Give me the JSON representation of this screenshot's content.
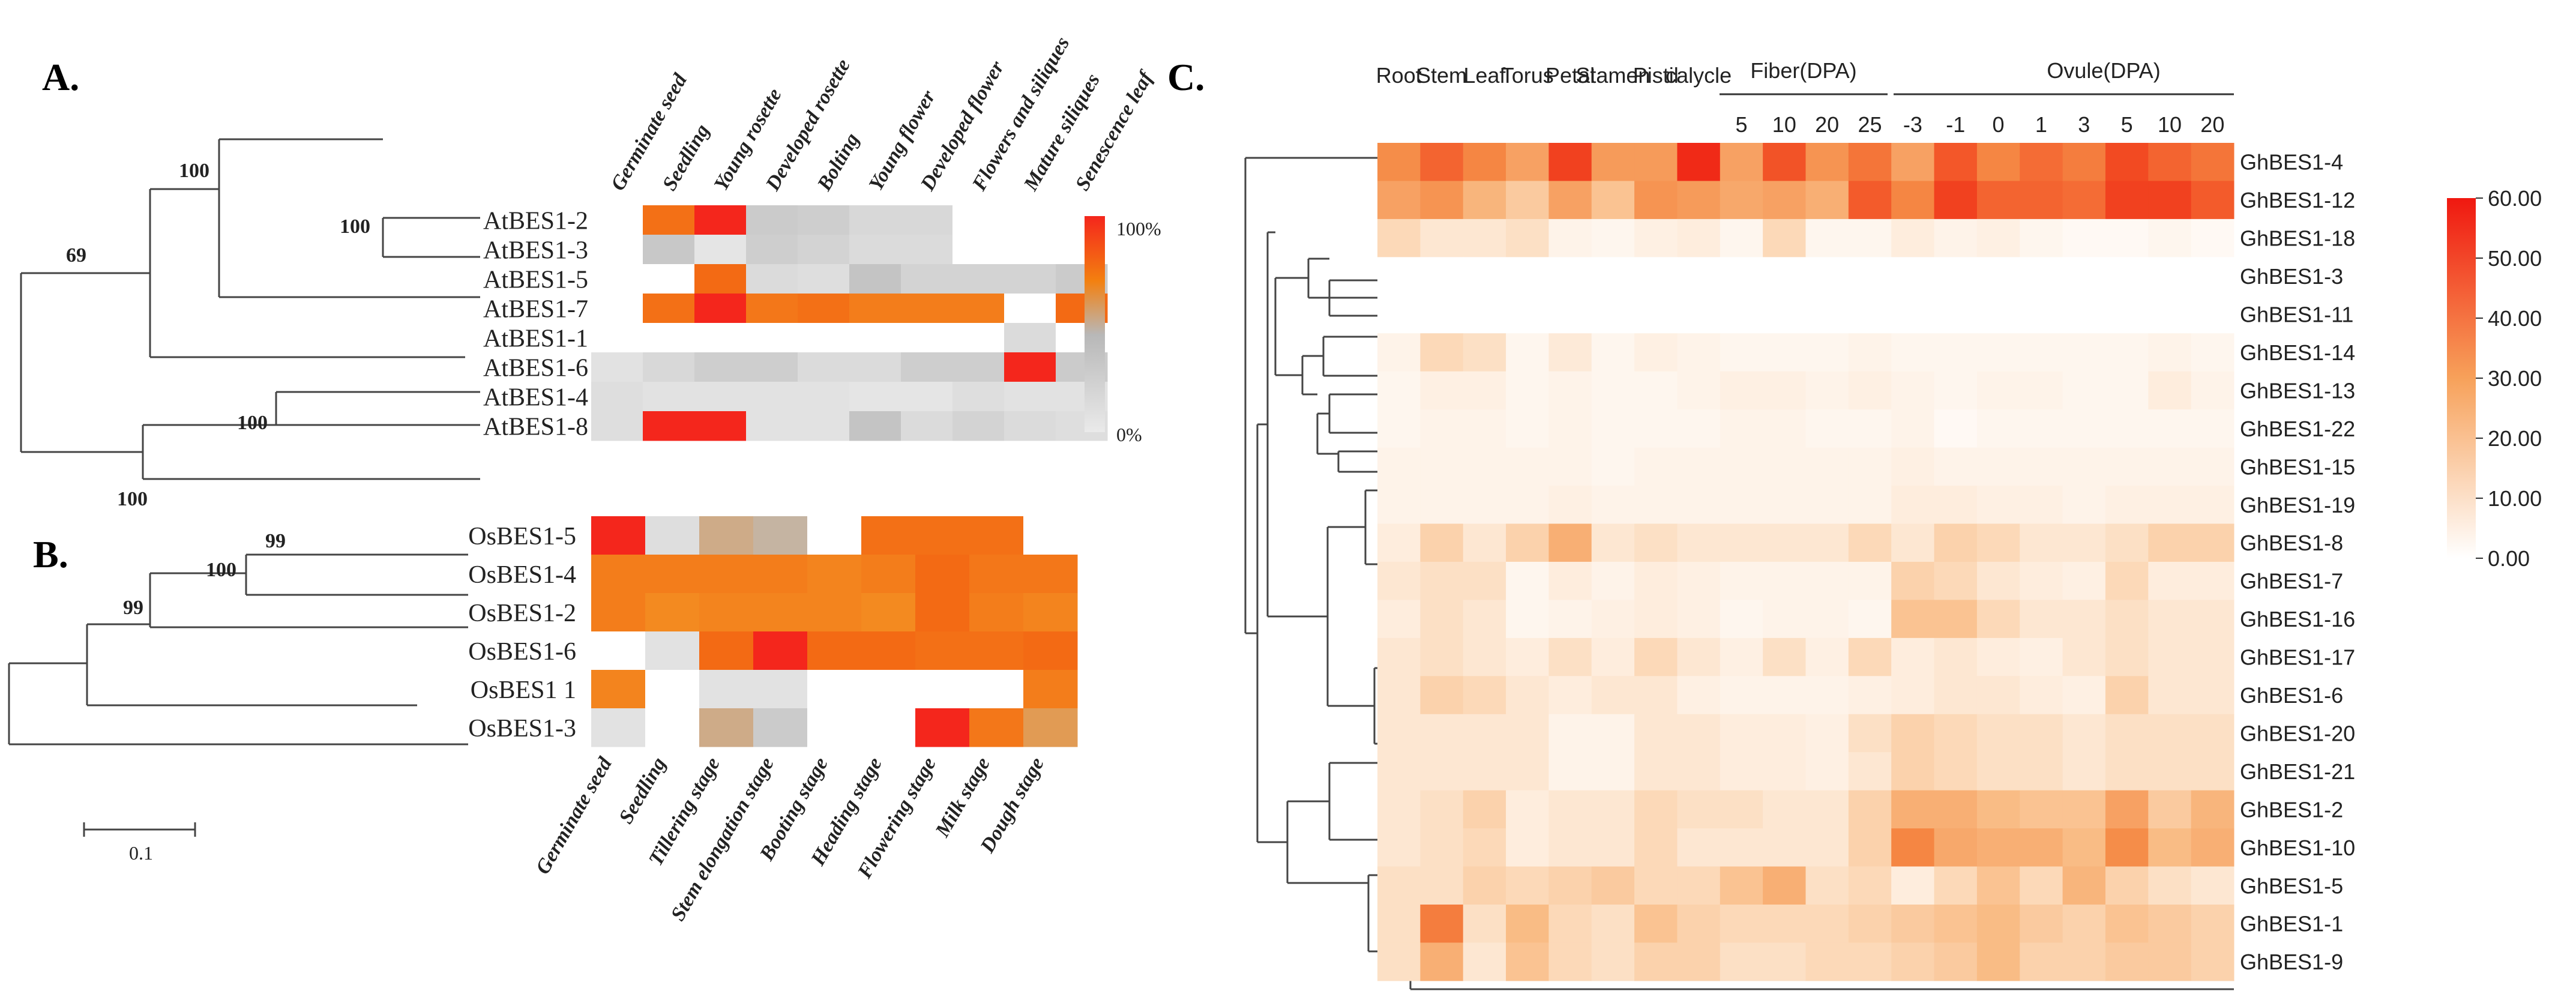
{
  "panels": {
    "a": "A.",
    "b": "B.",
    "c": "C."
  },
  "scale_bar": {
    "label": "0.1"
  },
  "colors": {
    "red": "#f4261c",
    "orange": "#f38010",
    "gray": "#c4c4c4",
    "light": "#e9e9e9",
    "white": "#ffffff"
  },
  "chart_data": [
    {
      "type": "heatmap",
      "panel": "A",
      "columns": [
        "Germinate seed",
        "Seedling",
        "Young rosette",
        "Developed rosette",
        "Bolting",
        "Young flower",
        "Developed flower",
        "Flowers and siliques",
        "Mature siliques",
        "Senescence leaf"
      ],
      "rows": [
        "AtBES1-2",
        "AtBES1-3",
        "AtBES1-5",
        "AtBES1-7",
        "AtBES1-1",
        "AtBES1-6",
        "AtBES1-4",
        "AtBES1-8"
      ],
      "values": [
        [
          0,
          80,
          100,
          20,
          18,
          12,
          12,
          0,
          0,
          0
        ],
        [
          0,
          22,
          3,
          18,
          15,
          10,
          10,
          0,
          0,
          0
        ],
        [
          0,
          0,
          85,
          10,
          8,
          25,
          15,
          15,
          15,
          20
        ],
        [
          0,
          80,
          100,
          75,
          80,
          70,
          70,
          70,
          0,
          85
        ],
        [
          0,
          0,
          0,
          0,
          0,
          0,
          0,
          0,
          10,
          0
        ],
        [
          5,
          12,
          18,
          18,
          10,
          10,
          18,
          18,
          100,
          20
        ],
        [
          8,
          5,
          5,
          5,
          5,
          3,
          3,
          8,
          5,
          5
        ],
        [
          8,
          100,
          100,
          5,
          5,
          25,
          10,
          15,
          10,
          8
        ]
      ],
      "legend": {
        "max_label": "100%",
        "min_label": "0%"
      },
      "bootstrap": [
        "100",
        "100",
        "69",
        "100",
        "100"
      ]
    },
    {
      "type": "heatmap",
      "panel": "B",
      "columns": [
        "Germinate seed",
        "Seedling",
        "Tillering stage",
        "Stem elongation stage",
        "Booting stage",
        "Heading stage",
        "Flowering stage",
        "Milk stage",
        "Dough stage"
      ],
      "rows": [
        "OsBES1-5",
        "OsBES1-4",
        "OsBES1-2",
        "OsBES1-6",
        "OsBES1 1",
        "OsBES1-3"
      ],
      "values": [
        [
          100,
          8,
          40,
          35,
          0,
          80,
          80,
          80,
          0
        ],
        [
          70,
          70,
          70,
          70,
          65,
          70,
          85,
          75,
          75
        ],
        [
          70,
          60,
          65,
          65,
          65,
          60,
          85,
          70,
          65
        ],
        [
          0,
          5,
          85,
          100,
          85,
          85,
          80,
          80,
          85
        ],
        [
          65,
          0,
          5,
          5,
          0,
          0,
          0,
          0,
          70
        ],
        [
          5,
          0,
          40,
          20,
          0,
          0,
          100,
          75,
          50
        ]
      ],
      "bootstrap": [
        "99",
        "100",
        "99"
      ]
    },
    {
      "type": "heatmap",
      "panel": "C",
      "column_groups": [
        {
          "label": "Fiber(DPA)"
        },
        {
          "label": "Ovule(DPA)"
        }
      ],
      "columns": [
        "Root",
        "Stem",
        "Leaf",
        "Torus",
        "Petal",
        "Stamen",
        "Pistil",
        "calycle",
        "5",
        "10",
        "20",
        "25",
        "-3",
        "-1",
        "0",
        "1",
        "3",
        "5",
        "10",
        "20"
      ],
      "rows": [
        "GhBES1-4",
        "GhBES1-12",
        "GhBES1-18",
        "GhBES1-3",
        "GhBES1-11",
        "GhBES1-14",
        "GhBES1-13",
        "GhBES1-22",
        "GhBES1-15",
        "GhBES1-19",
        "GhBES1-8",
        "GhBES1-7",
        "GhBES1-16",
        "GhBES1-17",
        "GhBES1-6",
        "GhBES1-20",
        "GhBES1-21",
        "GhBES1-2",
        "GhBES1-10",
        "GhBES1-5",
        "GhBES1-1",
        "GhBES1-9"
      ],
      "values": [
        [
          34,
          44,
          36,
          28,
          52,
          30,
          30,
          57,
          28,
          48,
          32,
          40,
          28,
          47,
          36,
          42,
          38,
          50,
          44,
          40
        ],
        [
          28,
          32,
          22,
          16,
          28,
          18,
          32,
          30,
          26,
          28,
          24,
          46,
          36,
          52,
          44,
          44,
          42,
          52,
          52,
          46
        ],
        [
          12,
          8,
          8,
          10,
          4,
          3,
          5,
          6,
          3,
          12,
          3,
          3,
          6,
          4,
          5,
          3,
          2,
          2,
          3,
          2
        ],
        [
          0,
          0,
          0,
          0,
          0,
          0,
          0,
          0,
          0,
          0,
          0,
          0,
          0,
          0,
          0,
          0,
          0,
          0,
          0,
          0
        ],
        [
          0,
          0,
          0,
          0,
          0,
          0,
          0,
          0,
          0,
          0,
          0,
          0,
          0,
          0,
          0,
          0,
          0,
          0,
          0,
          0
        ],
        [
          4,
          12,
          10,
          3,
          7,
          3,
          5,
          4,
          3,
          3,
          3,
          4,
          3,
          3,
          3,
          3,
          3,
          3,
          4,
          3
        ],
        [
          3,
          5,
          5,
          3,
          4,
          3,
          3,
          4,
          5,
          5,
          4,
          5,
          4,
          3,
          4,
          4,
          3,
          3,
          6,
          4
        ],
        [
          3,
          4,
          4,
          3,
          4,
          3,
          3,
          3,
          4,
          4,
          3,
          3,
          4,
          2,
          3,
          3,
          3,
          3,
          3,
          3
        ],
        [
          4,
          4,
          4,
          4,
          4,
          3,
          4,
          4,
          4,
          4,
          4,
          4,
          5,
          4,
          4,
          4,
          4,
          4,
          4,
          4
        ],
        [
          4,
          4,
          4,
          4,
          5,
          4,
          4,
          4,
          4,
          4,
          4,
          4,
          6,
          6,
          5,
          5,
          4,
          5,
          5,
          5
        ],
        [
          6,
          14,
          8,
          14,
          24,
          8,
          10,
          8,
          8,
          8,
          8,
          12,
          8,
          14,
          12,
          8,
          8,
          10,
          14,
          14
        ],
        [
          8,
          10,
          10,
          3,
          6,
          4,
          6,
          5,
          4,
          4,
          4,
          4,
          14,
          12,
          8,
          6,
          5,
          12,
          6,
          6
        ],
        [
          6,
          10,
          8,
          3,
          4,
          5,
          6,
          5,
          3,
          4,
          4,
          3,
          18,
          18,
          12,
          8,
          8,
          10,
          8,
          8
        ],
        [
          8,
          10,
          8,
          6,
          10,
          6,
          12,
          8,
          5,
          10,
          5,
          12,
          6,
          8,
          6,
          5,
          8,
          10,
          8,
          8
        ],
        [
          8,
          14,
          12,
          8,
          6,
          8,
          8,
          5,
          4,
          4,
          4,
          5,
          6,
          8,
          8,
          6,
          5,
          14,
          8,
          8
        ],
        [
          8,
          8,
          8,
          8,
          4,
          4,
          8,
          8,
          6,
          6,
          5,
          10,
          14,
          12,
          10,
          10,
          8,
          10,
          10,
          10
        ],
        [
          8,
          8,
          8,
          8,
          4,
          4,
          8,
          8,
          6,
          6,
          5,
          8,
          14,
          12,
          10,
          10,
          8,
          10,
          10,
          10
        ],
        [
          8,
          10,
          14,
          6,
          8,
          8,
          12,
          10,
          10,
          8,
          8,
          14,
          24,
          24,
          20,
          18,
          18,
          28,
          16,
          22
        ],
        [
          8,
          10,
          12,
          6,
          8,
          8,
          12,
          8,
          8,
          8,
          8,
          14,
          36,
          26,
          24,
          24,
          20,
          34,
          20,
          24
        ],
        [
          10,
          10,
          14,
          12,
          14,
          16,
          12,
          12,
          18,
          24,
          10,
          12,
          6,
          12,
          18,
          12,
          22,
          14,
          10,
          8
        ],
        [
          10,
          38,
          10,
          20,
          12,
          10,
          18,
          14,
          12,
          12,
          12,
          14,
          16,
          18,
          20,
          16,
          14,
          18,
          16,
          14
        ],
        [
          10,
          24,
          8,
          18,
          12,
          10,
          14,
          14,
          10,
          10,
          12,
          12,
          14,
          16,
          20,
          14,
          14,
          16,
          16,
          14
        ]
      ],
      "colorbar": {
        "min": 0,
        "max": 60,
        "ticks": [
          "0.00",
          "10.00",
          "20.00",
          "30.00",
          "40.00",
          "50.00",
          "60.00"
        ]
      }
    }
  ]
}
